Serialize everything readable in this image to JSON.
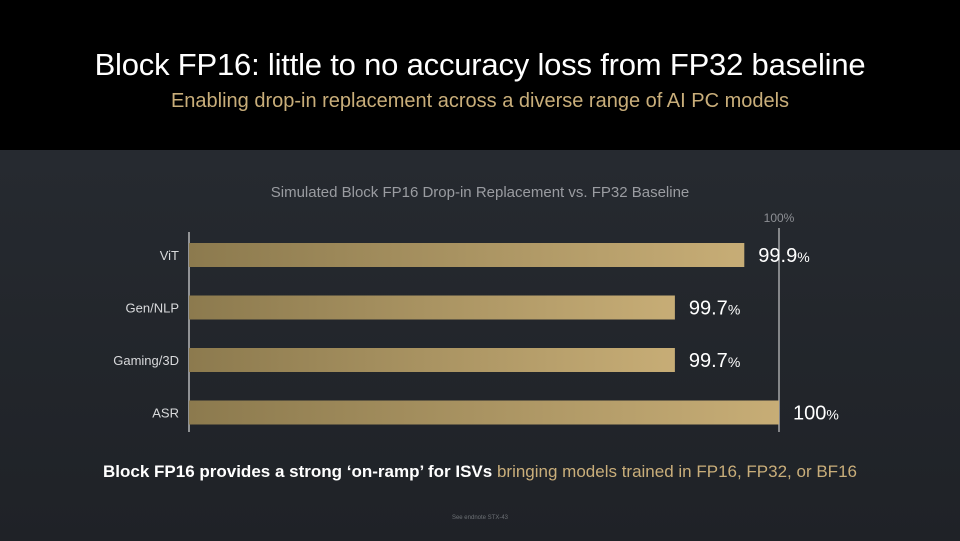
{
  "header": {
    "title": "Block FP16: little to no accuracy loss from FP32 baseline",
    "subtitle": "Enabling drop-in replacement across a diverse range of AI PC models"
  },
  "chart_data": {
    "type": "bar",
    "orientation": "horizontal",
    "title": "Simulated Block FP16 Drop-in Replacement vs. FP32 Baseline",
    "categories": [
      "ViT",
      "Gen/NLP",
      "Gaming/3D",
      "ASR"
    ],
    "values": [
      99.9,
      99.7,
      99.7,
      100
    ],
    "value_labels": [
      {
        "num": "99.9",
        "unit": "%"
      },
      {
        "num": "99.7",
        "unit": "%"
      },
      {
        "num": "99.7",
        "unit": "%"
      },
      {
        "num": "100",
        "unit": "%"
      }
    ],
    "reference_line": {
      "value": 100,
      "label": "100%"
    },
    "xlim": [
      98.3,
      100
    ],
    "grid": false,
    "bar_color_start": "#8c7a4e",
    "bar_color_end": "#c7ad76"
  },
  "footer": {
    "strong_text": "Block FP16 provides a strong ‘on-ramp’ for ISVs",
    "accent_text": "bringing models trained in FP16, FP32, or BF16"
  },
  "footnote": "See endnote STX-43"
}
